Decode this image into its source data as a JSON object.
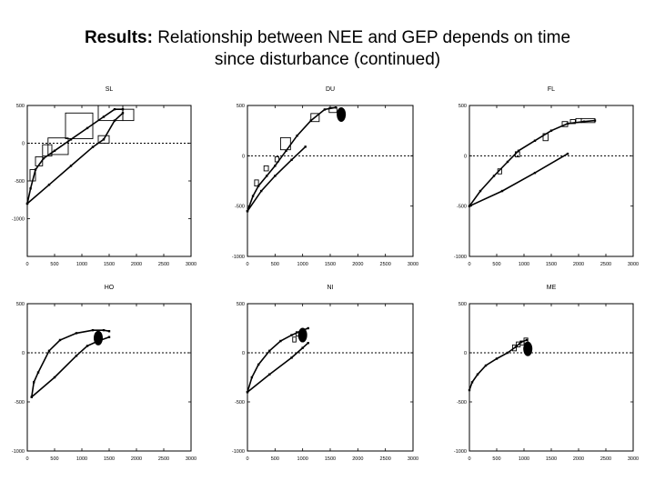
{
  "slide": {
    "title_bold": "Results:",
    "title_rest": " Relationship between NEE and GEP depends on time",
    "title_line2": "since disturbance (continued)"
  },
  "chart_data": [
    {
      "type": "line",
      "title": "SL",
      "xlabel": "",
      "ylabel": "",
      "xlim": [
        0,
        3000
      ],
      "ylim": [
        -1500,
        500
      ],
      "xticks": [
        0,
        500,
        1000,
        1500,
        2000,
        2500,
        3000
      ],
      "xtick_labels": [
        "0",
        "500",
        "1000",
        "1500",
        "2000",
        "2500",
        "3000"
      ],
      "yticks": [
        500,
        0,
        -500,
        -1000
      ],
      "ytick_labels": [
        "500",
        "0",
        "-500",
        "-1000"
      ],
      "series": [
        {
          "values": [
            [
              0,
              -800
            ],
            [
              60,
              -600
            ],
            [
              150,
              -350
            ],
            [
              300,
              -200
            ],
            [
              500,
              -100
            ],
            [
              800,
              50
            ],
            [
              1100,
              200
            ],
            [
              1400,
              350
            ],
            [
              1600,
              450
            ],
            [
              1750,
              450
            ]
          ]
        },
        {
          "values": [
            [
              0,
              -800
            ],
            [
              400,
              -550
            ],
            [
              800,
              -300
            ],
            [
              1200,
              -50
            ],
            [
              1400,
              50
            ],
            [
              1600,
              300
            ],
            [
              1750,
              400
            ]
          ]
        }
      ],
      "boxes": [
        [
          50,
          -500,
          150,
          -350
        ],
        [
          150,
          -300,
          280,
          -180
        ],
        [
          280,
          -170,
          450,
          -20
        ],
        [
          380,
          -150,
          750,
          70
        ],
        [
          700,
          60,
          1200,
          400
        ],
        [
          1300,
          0,
          1500,
          100
        ],
        [
          1300,
          300,
          1750,
          500
        ],
        [
          1750,
          300,
          1950,
          450
        ]
      ],
      "zero_line": true
    },
    {
      "type": "line",
      "title": "DU",
      "xlabel": "",
      "ylabel": "",
      "xlim": [
        0,
        3000
      ],
      "ylim": [
        -1000,
        500
      ],
      "xticks": [
        0,
        500,
        1000,
        1500,
        2000,
        2500,
        3000
      ],
      "xtick_labels": [
        "0",
        "500",
        "1000",
        "1500",
        "2000",
        "2500",
        "3000"
      ],
      "yticks": [
        500,
        0,
        -500,
        -1000
      ],
      "ytick_labels": [
        "500",
        "0",
        "-500",
        "-1000"
      ],
      "series": [
        {
          "values": [
            [
              0,
              -550
            ],
            [
              100,
              -400
            ],
            [
              200,
              -300
            ],
            [
              350,
              -200
            ],
            [
              500,
              -100
            ],
            [
              700,
              50
            ],
            [
              900,
              200
            ],
            [
              1150,
              350
            ],
            [
              1400,
              460
            ],
            [
              1600,
              480
            ]
          ]
        },
        {
          "values": [
            [
              0,
              -550
            ],
            [
              250,
              -350
            ],
            [
              500,
              -200
            ],
            [
              800,
              -40
            ],
            [
              1050,
              90
            ]
          ]
        }
      ],
      "boxes": [
        [
          130,
          -300,
          200,
          -240
        ],
        [
          300,
          -150,
          380,
          -100
        ],
        [
          500,
          -60,
          570,
          -10
        ],
        [
          600,
          60,
          780,
          180
        ],
        [
          1150,
          340,
          1300,
          420
        ],
        [
          1480,
          430,
          1620,
          480
        ]
      ],
      "blob": [
        1700,
        410
      ],
      "zero_line": true
    },
    {
      "type": "line",
      "title": "FL",
      "xlabel": "",
      "ylabel": "",
      "xlim": [
        0,
        3000
      ],
      "ylim": [
        -1000,
        500
      ],
      "xticks": [
        0,
        500,
        1000,
        1500,
        2000,
        2500,
        3000
      ],
      "xtick_labels": [
        "0",
        "500",
        "1000",
        "1500",
        "2000",
        "2500",
        "3000"
      ],
      "yticks": [
        500,
        0,
        -500,
        -1000
      ],
      "ytick_labels": [
        "500",
        "0",
        "-500",
        "-1000"
      ],
      "series": [
        {
          "values": [
            [
              0,
              -500
            ],
            [
              200,
              -350
            ],
            [
              450,
              -200
            ],
            [
              700,
              -60
            ],
            [
              900,
              50
            ],
            [
              1200,
              150
            ],
            [
              1500,
              250
            ],
            [
              1800,
              320
            ],
            [
              2100,
              340
            ],
            [
              2300,
              350
            ]
          ]
        },
        {
          "values": [
            [
              0,
              -500
            ],
            [
              600,
              -350
            ],
            [
              1200,
              -170
            ],
            [
              1800,
              20
            ]
          ]
        }
      ],
      "boxes": [
        [
          520,
          -180,
          590,
          -130
        ],
        [
          840,
          -10,
          920,
          40
        ],
        [
          1350,
          150,
          1440,
          220
        ],
        [
          1700,
          290,
          1800,
          340
        ],
        [
          1850,
          320,
          1940,
          360
        ],
        [
          1950,
          330,
          2050,
          370
        ],
        [
          2050,
          330,
          2300,
          370
        ]
      ],
      "zero_line": true
    },
    {
      "type": "line",
      "title": "HO",
      "xlabel": "",
      "ylabel": "",
      "xlim": [
        0,
        3000
      ],
      "ylim": [
        -1000,
        500
      ],
      "xticks": [
        0,
        500,
        1000,
        1500,
        2000,
        2500,
        3000
      ],
      "xtick_labels": [
        "0",
        "500",
        "1000",
        "1500",
        "2000",
        "2500",
        "3000"
      ],
      "yticks": [
        500,
        0,
        -500,
        -1000
      ],
      "ytick_labels": [
        "500",
        "0",
        "-500",
        "-1000"
      ],
      "series": [
        {
          "values": [
            [
              80,
              -450
            ],
            [
              120,
              -300
            ],
            [
              200,
              -200
            ],
            [
              400,
              20
            ],
            [
              600,
              130
            ],
            [
              900,
              200
            ],
            [
              1200,
              230
            ],
            [
              1400,
              230
            ],
            [
              1500,
              220
            ]
          ]
        },
        {
          "values": [
            [
              80,
              -450
            ],
            [
              500,
              -250
            ],
            [
              900,
              -30
            ],
            [
              1100,
              70
            ],
            [
              1300,
              120
            ],
            [
              1500,
              160
            ]
          ]
        }
      ],
      "blob": [
        1300,
        150
      ],
      "zero_line": true
    },
    {
      "type": "line",
      "title": "NI",
      "xlabel": "",
      "ylabel": "",
      "xlim": [
        0,
        3000
      ],
      "ylim": [
        -1000,
        500
      ],
      "xticks": [
        0,
        500,
        1000,
        1500,
        2000,
        2500,
        3000
      ],
      "xtick_labels": [
        "0",
        "500",
        "1000",
        "1500",
        "2000",
        "2500",
        "3000"
      ],
      "yticks": [
        500,
        0,
        -500,
        -1000
      ],
      "ytick_labels": [
        "500",
        "0",
        "-500",
        "-1000"
      ],
      "series": [
        {
          "values": [
            [
              0,
              -400
            ],
            [
              80,
              -250
            ],
            [
              200,
              -120
            ],
            [
              400,
              20
            ],
            [
              600,
              120
            ],
            [
              800,
              180
            ],
            [
              1000,
              230
            ],
            [
              1100,
              250
            ]
          ]
        },
        {
          "values": [
            [
              0,
              -400
            ],
            [
              400,
              -220
            ],
            [
              800,
              -50
            ],
            [
              1000,
              50
            ],
            [
              1100,
              100
            ]
          ]
        }
      ],
      "boxes": [
        [
          820,
          110,
          880,
          160
        ],
        [
          880,
          170,
          940,
          215
        ]
      ],
      "blob": [
        1000,
        180
      ],
      "zero_line": true
    },
    {
      "type": "line",
      "title": "ME",
      "xlabel": "",
      "ylabel": "",
      "xlim": [
        0,
        3000
      ],
      "ylim": [
        -1000,
        500
      ],
      "xticks": [
        0,
        500,
        1000,
        1500,
        2000,
        2500,
        3000
      ],
      "xtick_labels": [
        "0",
        "500",
        "1000",
        "1500",
        "2000",
        "2500",
        "3000"
      ],
      "yticks": [
        500,
        0,
        -500,
        -1000
      ],
      "ytick_labels": [
        "500",
        "0",
        "-500",
        "-1000"
      ],
      "series": [
        {
          "values": [
            [
              0,
              -380
            ],
            [
              50,
              -300
            ],
            [
              150,
              -220
            ],
            [
              300,
              -130
            ],
            [
              500,
              -60
            ],
            [
              700,
              0
            ],
            [
              850,
              60
            ],
            [
              950,
              110
            ],
            [
              1050,
              130
            ]
          ]
        }
      ],
      "boxes": [
        [
          790,
          20,
          860,
          80
        ],
        [
          860,
          60,
          930,
          110
        ],
        [
          930,
          80,
          1000,
          120
        ],
        [
          1000,
          100,
          1070,
          150
        ]
      ],
      "blob": [
        1070,
        40
      ],
      "zero_line": true
    }
  ]
}
